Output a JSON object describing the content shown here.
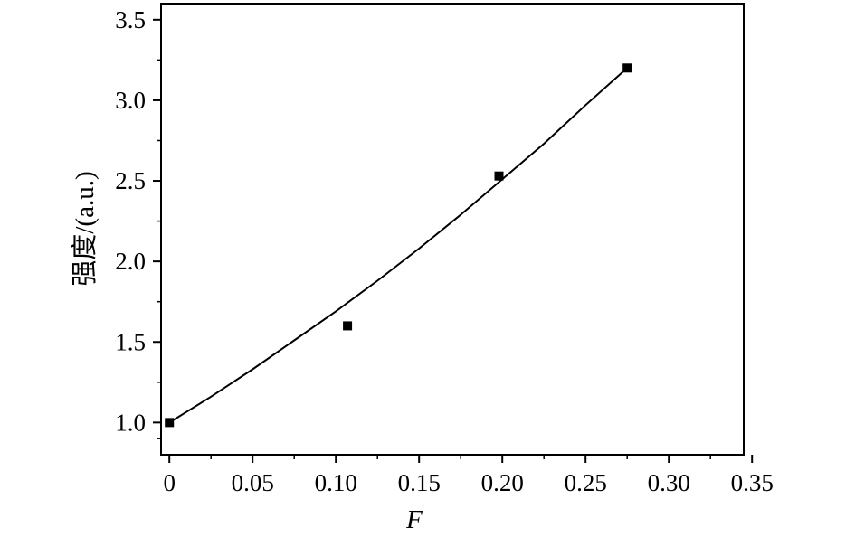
{
  "chart_data": {
    "type": "scatter",
    "title": "",
    "xlabel": "F",
    "ylabel": "强度/(a.u.)",
    "xlim": [
      -0.005,
      0.345
    ],
    "ylim": [
      0.8,
      3.6
    ],
    "xticks": [
      0,
      0.05,
      0.1,
      0.15,
      0.2,
      0.25,
      0.3,
      0.35
    ],
    "xtick_labels": [
      "0",
      "0.05",
      "0.10",
      "0.15",
      "0.20",
      "0.25",
      "0.30",
      "0.35"
    ],
    "yticks": [
      1.0,
      1.5,
      2.0,
      2.5,
      3.0,
      3.5
    ],
    "ytick_labels": [
      "1.0",
      "1.5",
      "2.0",
      "2.5",
      "3.0",
      "3.5"
    ],
    "grid": false,
    "legend": "none",
    "series": [
      {
        "type": "scatter",
        "marker": "square",
        "color": "#000000",
        "x": [
          0.0,
          0.107,
          0.198,
          0.275
        ],
        "y": [
          1.0,
          1.6,
          2.53,
          3.2
        ]
      },
      {
        "type": "line",
        "color": "#000000",
        "x": [
          0.0,
          0.025,
          0.05,
          0.075,
          0.1,
          0.125,
          0.15,
          0.175,
          0.2,
          0.225,
          0.25,
          0.275
        ],
        "y": [
          1.0,
          1.16,
          1.33,
          1.51,
          1.69,
          1.88,
          2.08,
          2.29,
          2.51,
          2.73,
          2.97,
          3.2
        ]
      }
    ]
  }
}
